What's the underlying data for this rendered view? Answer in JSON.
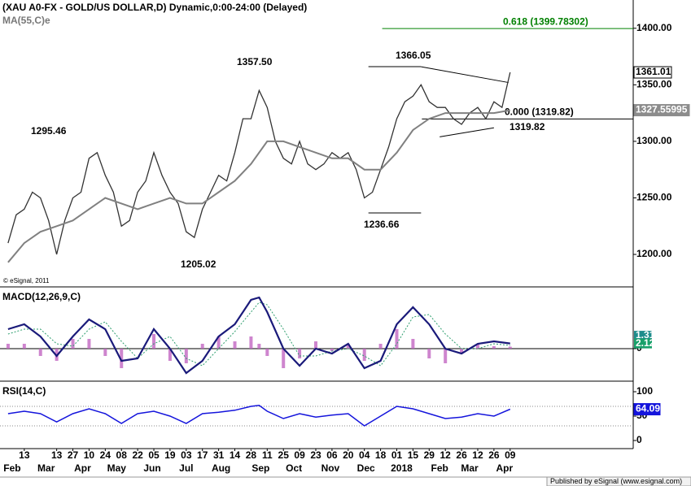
{
  "header": {
    "title": "(XAU A0-FX - GOLD/US DOLLAR,D) Dynamic,0:00-24:00 (Delayed)",
    "copyright": "© eSignal, 2011"
  },
  "footer": "Published by eSignal (www.esignal.com)",
  "chart_data": [
    {
      "type": "line",
      "subtitle": "MA(55,C)e",
      "xlim": [
        -3,
        75.2
      ],
      "ylim": [
        1172,
        1425
      ],
      "yticks": [
        {
          "value": 1200,
          "label": "1200.00"
        },
        {
          "value": 1250,
          "label": "1250.00"
        },
        {
          "value": 1300,
          "label": "1300.00"
        },
        {
          "value": 1350,
          "label": "1350.00"
        },
        {
          "value": 1400,
          "label": "1400.00"
        }
      ],
      "series": [
        {
          "color": "#333333",
          "x": [
            -2,
            -1,
            0,
            1,
            2,
            3,
            4,
            5,
            6,
            7,
            8,
            9,
            10,
            11,
            12,
            13,
            14,
            15,
            16,
            17,
            18,
            19,
            20,
            21,
            22,
            23,
            24,
            25,
            26,
            27,
            28,
            29,
            30,
            31,
            32,
            33,
            34,
            35,
            36,
            37,
            38,
            39,
            40,
            41,
            42,
            43,
            44,
            45,
            46,
            47,
            48,
            49,
            50,
            51,
            52,
            53,
            54,
            55,
            56,
            57,
            58,
            59,
            60
          ],
          "values": [
            1210,
            1235,
            1240,
            1255,
            1250,
            1230,
            1200,
            1230,
            1250,
            1255,
            1285,
            1290,
            1270,
            1255,
            1225,
            1230,
            1255,
            1265,
            1290,
            1270,
            1255,
            1245,
            1220,
            1215,
            1240,
            1255,
            1270,
            1265,
            1290,
            1320,
            1320,
            1345,
            1330,
            1300,
            1285,
            1280,
            1300,
            1280,
            1275,
            1280,
            1290,
            1285,
            1290,
            1275,
            1250,
            1255,
            1275,
            1295,
            1320,
            1335,
            1340,
            1350,
            1335,
            1330,
            1330,
            1320,
            1315,
            1325,
            1330,
            1320,
            1335,
            1330,
            1361.01
          ]
        },
        {
          "color": "#808080",
          "x": [
            -2,
            0,
            2,
            4,
            6,
            8,
            10,
            12,
            14,
            16,
            18,
            20,
            22,
            24,
            26,
            28,
            30,
            32,
            34,
            36,
            38,
            40,
            42,
            44,
            46,
            48,
            50,
            52,
            54,
            56,
            58,
            60
          ],
          "values": [
            1193,
            1210,
            1220,
            1225,
            1230,
            1240,
            1250,
            1245,
            1240,
            1245,
            1250,
            1245,
            1245,
            1255,
            1265,
            1280,
            1300,
            1300,
            1295,
            1290,
            1285,
            1285,
            1275,
            1275,
            1290,
            1310,
            1320,
            1325,
            1325,
            1325,
            1325,
            1327.55995
          ]
        }
      ],
      "annotations": [
        "1295.46",
        "1357.50",
        "1205.02",
        "1366.05",
        "1236.66",
        "1319.82"
      ],
      "fib_levels": [
        {
          "label": "0.618 (1399.78302)",
          "value": 1399.78302,
          "x_start": 44.2,
          "color": "#008000"
        },
        {
          "label": "0.000 (1319.82)",
          "value": 1319.82,
          "x_start": 49.1,
          "color": "#000000"
        }
      ],
      "trendlines": [
        {
          "x": [
            42.5,
            49
          ],
          "y": [
            1366.05,
            1366.05
          ]
        },
        {
          "x": [
            49,
            59.8
          ],
          "y": [
            1366,
            1352
          ]
        },
        {
          "x": [
            51.3,
            58
          ],
          "y": [
            1304,
            1312
          ]
        },
        {
          "x": [
            42.5,
            49
          ],
          "y": [
            1236.66,
            1236.66
          ]
        }
      ]
    },
    {
      "type": "macd",
      "title": "MACD(12,26,9,C)",
      "xlim": [
        -3,
        75.2
      ],
      "ylim": [
        -13,
        25
      ],
      "yticks": [
        0
      ],
      "x": [
        -2,
        0,
        2,
        4,
        6,
        8,
        10,
        12,
        14,
        16,
        18,
        20,
        22,
        24,
        26,
        28,
        29,
        30,
        32,
        34,
        36,
        38,
        40,
        42,
        44,
        46,
        48,
        50,
        52,
        54,
        56,
        58,
        60
      ],
      "series": [
        {
          "color": "#1a1a7a",
          "values": [
            8,
            10,
            5,
            -3,
            5,
            12,
            8,
            -5,
            -4,
            8,
            0,
            -10,
            -5,
            5,
            10,
            20,
            21,
            15,
            0,
            -7,
            0,
            -2,
            2,
            -8,
            -5,
            10,
            17,
            10,
            0,
            -2,
            2,
            3,
            2.12
          ]
        },
        {
          "color": "#2e9e6e",
          "values": [
            6,
            8,
            8,
            2,
            1,
            8,
            11,
            3,
            -4,
            2,
            5,
            -4,
            -7,
            0,
            7,
            15,
            19,
            18,
            8,
            -3,
            -3,
            -1,
            0,
            -3,
            -7,
            2,
            13,
            14,
            6,
            0,
            0,
            2,
            1.31
          ]
        },
        {
          "color": "#c266c2",
          "values": [
            2,
            2,
            -3,
            -5,
            4,
            4,
            -3,
            -8,
            0,
            6,
            -5,
            -6,
            2,
            5,
            3,
            5,
            2,
            -3,
            -8,
            -4,
            3,
            -1,
            2,
            -5,
            2,
            8,
            4,
            -4,
            -6,
            -2,
            2,
            1,
            0.81
          ]
        }
      ]
    },
    {
      "type": "line",
      "title": "RSI(14,C)",
      "xlim": [
        -3,
        75.2
      ],
      "ylim": [
        -15,
        120
      ],
      "yticks": [
        0,
        50,
        100
      ],
      "reference_lines": [
        30,
        70
      ],
      "series": [
        {
          "color": "#1414dc",
          "x": [
            -2,
            0,
            2,
            4,
            6,
            8,
            10,
            12,
            14,
            16,
            18,
            20,
            22,
            24,
            26,
            28,
            29,
            30,
            32,
            34,
            36,
            38,
            40,
            42,
            44,
            46,
            48,
            50,
            52,
            54,
            56,
            58,
            60
          ],
          "values": [
            55,
            60,
            55,
            38,
            55,
            65,
            55,
            35,
            55,
            60,
            50,
            35,
            55,
            58,
            62,
            70,
            72,
            60,
            45,
            55,
            48,
            52,
            55,
            30,
            50,
            70,
            65,
            55,
            45,
            48,
            55,
            50,
            64.09
          ]
        }
      ],
      "xticks": [
        {
          "value": 0,
          "label": "13"
        },
        {
          "value": 4,
          "label": "13"
        },
        {
          "value": 6,
          "label": "27"
        },
        {
          "value": 8,
          "label": "10"
        },
        {
          "value": 10,
          "label": "24"
        },
        {
          "value": 12,
          "label": "08"
        },
        {
          "value": 14,
          "label": "22"
        },
        {
          "value": 16,
          "label": "05"
        },
        {
          "value": 18,
          "label": "19"
        },
        {
          "value": 20,
          "label": "03"
        },
        {
          "value": 22,
          "label": "17"
        },
        {
          "value": 24,
          "label": "31"
        },
        {
          "value": 26,
          "label": "14"
        },
        {
          "value": 28,
          "label": "28"
        },
        {
          "value": 30,
          "label": "11"
        },
        {
          "value": 32,
          "label": "25"
        },
        {
          "value": 34,
          "label": "09"
        },
        {
          "value": 36,
          "label": "23"
        },
        {
          "value": 38,
          "label": "06"
        },
        {
          "value": 40,
          "label": "20"
        },
        {
          "value": 42,
          "label": "04"
        },
        {
          "value": 44,
          "label": "18"
        },
        {
          "value": 46,
          "label": "01"
        },
        {
          "value": 48,
          "label": "15"
        },
        {
          "value": 50,
          "label": "29"
        },
        {
          "value": 52,
          "label": "12"
        },
        {
          "value": 54,
          "label": "26"
        },
        {
          "value": 56,
          "label": "12"
        },
        {
          "value": 58,
          "label": "26"
        },
        {
          "value": 60,
          "label": "09"
        }
      ],
      "month_ticks": [
        {
          "value": -1.5,
          "label": "Feb"
        },
        {
          "value": 2.7,
          "label": "Mar"
        },
        {
          "value": 7.2,
          "label": "Apr"
        },
        {
          "value": 11.4,
          "label": "May"
        },
        {
          "value": 15.8,
          "label": "Jun"
        },
        {
          "value": 20,
          "label": "Jul"
        },
        {
          "value": 24.3,
          "label": "Aug"
        },
        {
          "value": 29.2,
          "label": "Sep"
        },
        {
          "value": 33.3,
          "label": "Oct"
        },
        {
          "value": 37.8,
          "label": "Nov"
        },
        {
          "value": 42.2,
          "label": "Dec"
        },
        {
          "value": 46.6,
          "label": "2018"
        },
        {
          "value": 51.3,
          "label": "Feb"
        },
        {
          "value": 55,
          "label": "Mar"
        },
        {
          "value": 59.3,
          "label": "Apr"
        }
      ]
    }
  ]
}
